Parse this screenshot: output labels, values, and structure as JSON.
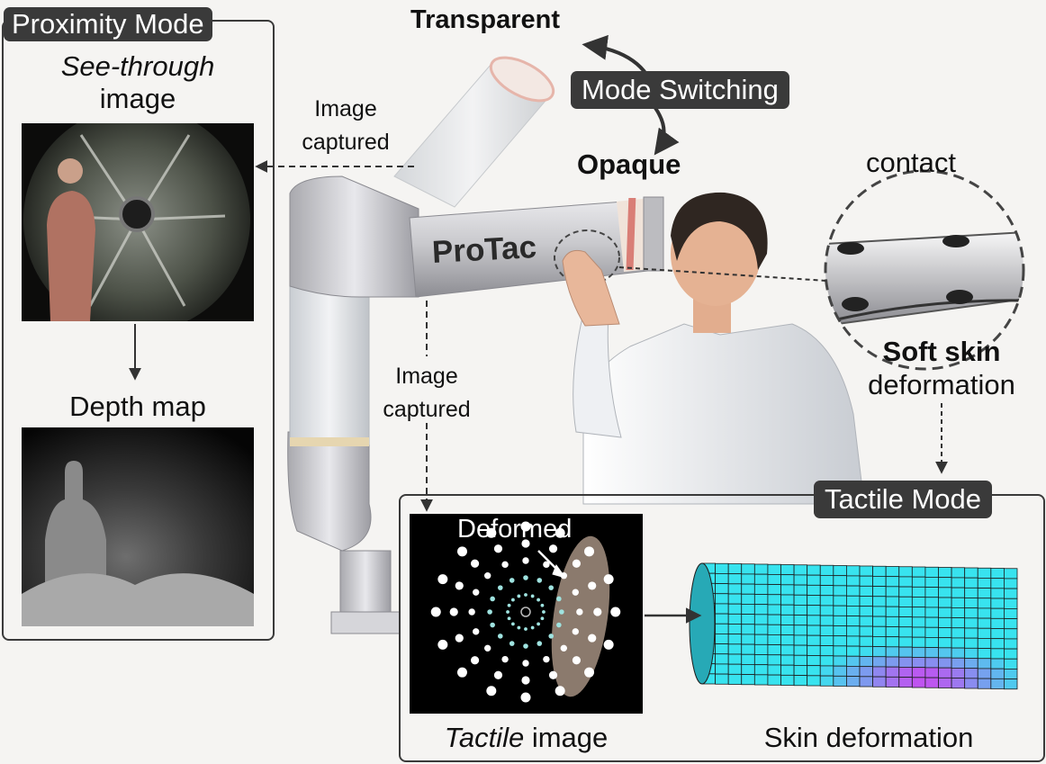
{
  "proximity": {
    "badge": "Proximity Mode",
    "see_through_italic": "See-through",
    "see_through_rest": "image",
    "depth_map": "Depth map"
  },
  "mode_switch": {
    "transparent": "Transparent",
    "badge": "Mode Switching",
    "opaque": "Opaque"
  },
  "robot": {
    "label": "ProTac"
  },
  "arrows": {
    "image_captured_top": [
      "Image",
      "captured"
    ],
    "image_captured_mid": [
      "Image",
      "captured"
    ]
  },
  "contact": {
    "title": "contact",
    "soft_skin": "Soft skin",
    "deformation": "deformation"
  },
  "tactile": {
    "badge": "Tactile Mode",
    "deformed": "Deformed",
    "caption_italic": "Tactile",
    "caption_rest": "image",
    "skin_caption": "Skin deformation"
  },
  "colors": {
    "badge_bg": "#3a3a3a",
    "mesh_base": "#38e3ef",
    "mesh_hot": "#d63cf0",
    "tactile_bg": "#000000"
  }
}
